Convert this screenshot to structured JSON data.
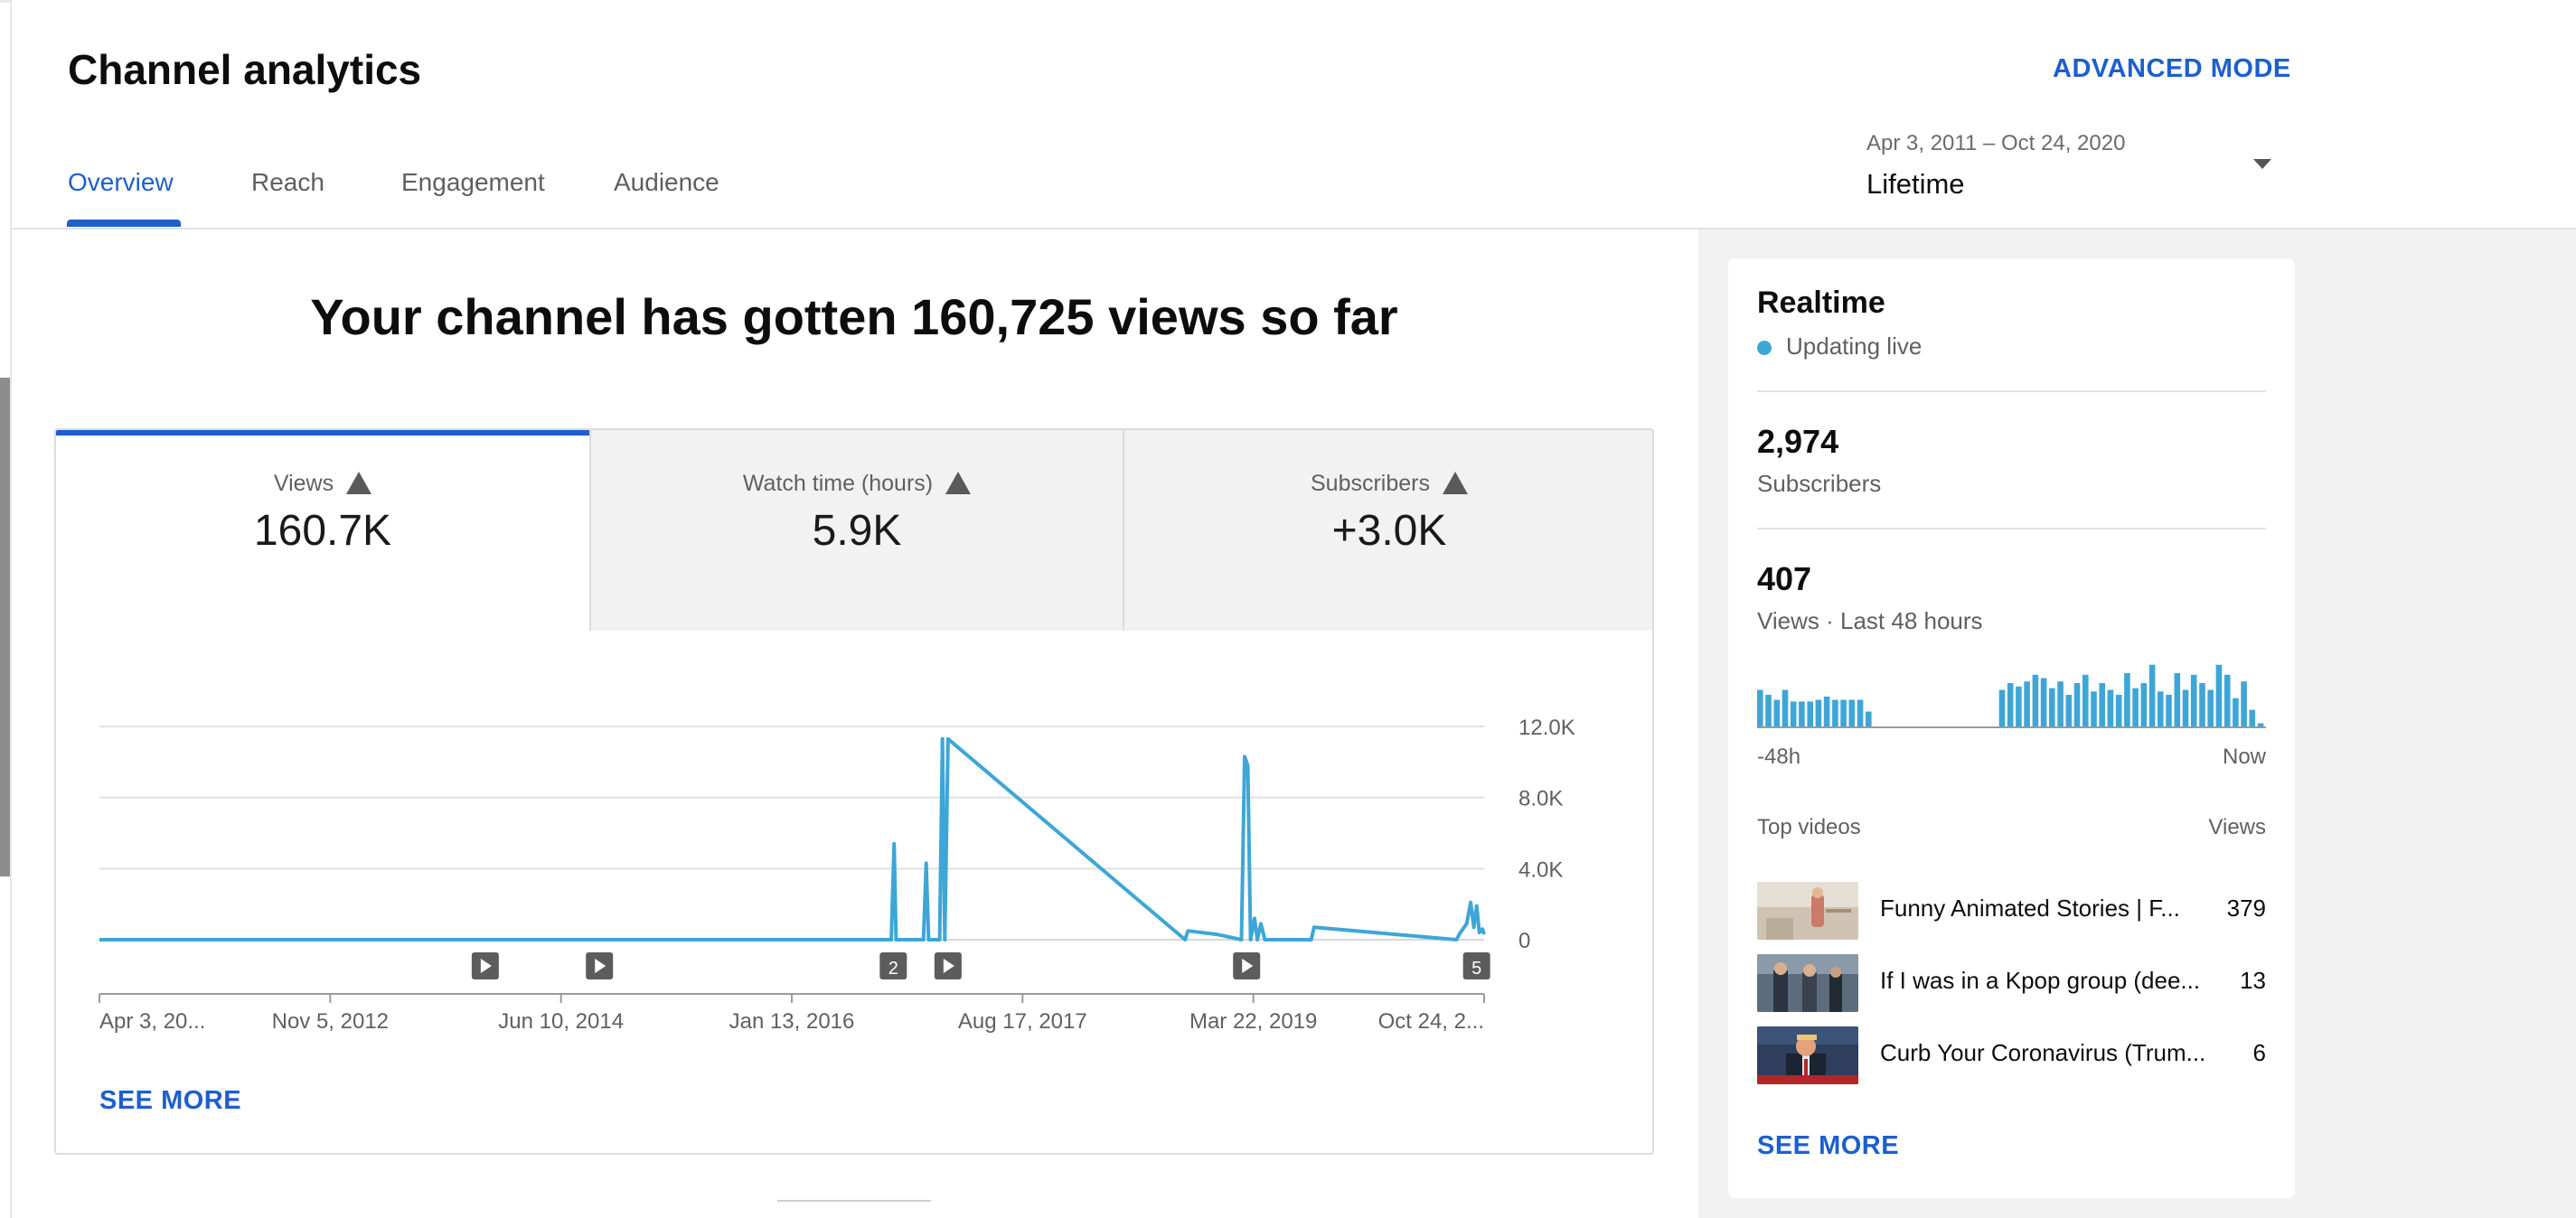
{
  "header": {
    "title": "Channel analytics",
    "advanced_mode": "ADVANCED MODE",
    "tabs": [
      {
        "label": "Overview",
        "active": true
      },
      {
        "label": "Reach",
        "active": false
      },
      {
        "label": "Engagement",
        "active": false
      },
      {
        "label": "Audience",
        "active": false
      }
    ],
    "date_range": {
      "dates": "Apr 3, 2011 – Oct 24, 2020",
      "label": "Lifetime"
    }
  },
  "main": {
    "headline": "Your channel has gotten 160,725 views so far",
    "metrics": [
      {
        "label": "Views",
        "value": "160.7K",
        "warning": true,
        "active": true
      },
      {
        "label": "Watch time (hours)",
        "value": "5.9K",
        "warning": true,
        "active": false
      },
      {
        "label": "Subscribers",
        "value": "+3.0K",
        "warning": true,
        "active": false
      }
    ],
    "see_more": "SEE MORE"
  },
  "chart_data": {
    "type": "line",
    "title": "",
    "xlabel": "",
    "ylabel": "",
    "ylim": [
      0,
      12000
    ],
    "yticks": [
      "12.0K",
      "8.0K",
      "4.0K",
      "0"
    ],
    "xticks": [
      "Apr 3, 20...",
      "Nov 5, 2012",
      "Jun 10, 2014",
      "Jan 13, 2016",
      "Aug 17, 2017",
      "Mar 22, 2019",
      "Oct 24, 2..."
    ],
    "grid": true,
    "series": [
      {
        "values_note_free": true,
        "x": [
          "2011-04-03",
          "2016-09-20",
          "2016-09-27",
          "2016-10-02",
          "2016-12-10",
          "2016-12-17",
          "2016-12-23",
          "2017-01-20",
          "2017-01-27",
          "2017-02-02",
          "2017-02-10",
          "2018-10-01",
          "2018-10-08",
          "2018-12-20",
          "2019-02-20",
          "2019-02-28",
          "2019-03-08",
          "2019-03-15",
          "2019-03-25",
          "2019-04-01",
          "2019-04-10",
          "2019-04-20",
          "2019-08-15",
          "2019-08-22",
          "2020-08-15",
          "2020-08-25",
          "2020-09-10",
          "2020-09-20",
          "2020-09-28",
          "2020-10-05",
          "2020-10-12",
          "2020-10-20",
          "2020-10-24"
        ],
        "y": [
          0,
          0,
          5400,
          0,
          0,
          4300,
          0,
          0,
          11300,
          0,
          11300,
          0,
          500,
          300,
          0,
          10300,
          9800,
          0,
          1200,
          0,
          900,
          0,
          0,
          700,
          0,
          400,
          900,
          2100,
          700,
          1900,
          400,
          600,
          300
        ]
      }
    ],
    "annotations": [
      {
        "x": "2013-12-01",
        "label": "",
        "icon": "play-icon"
      },
      {
        "x": "2014-09-15",
        "label": "",
        "icon": "play-icon"
      },
      {
        "x": "2016-09-25",
        "label": "2",
        "icon": ""
      },
      {
        "x": "2017-02-10",
        "label": "",
        "icon": "play-icon"
      },
      {
        "x": "2019-03-05",
        "label": "",
        "icon": "play-icon"
      },
      {
        "x": "2020-10-05",
        "label": "5",
        "icon": ""
      }
    ],
    "color": "#3ea6d7"
  },
  "realtime": {
    "title": "Realtime",
    "status": "Updating live",
    "subscribers_value": "2,974",
    "subscribers_label": "Subscribers",
    "views_value": "407",
    "views_label": "Views · Last 48 hours",
    "axis_start": "-48h",
    "axis_end": "Now",
    "bar_values": [
      23,
      20,
      17,
      23,
      16,
      16,
      16,
      17,
      19,
      17,
      17,
      17,
      17,
      10,
      0,
      0,
      0,
      0,
      0,
      0,
      0,
      0,
      0,
      0,
      0,
      0,
      0,
      0,
      0,
      23,
      27,
      25,
      28,
      32,
      30,
      24,
      28,
      20,
      27,
      32,
      22,
      27,
      23,
      20,
      33,
      24,
      27,
      38,
      22,
      20,
      33,
      23,
      32,
      27,
      23,
      38,
      32,
      18,
      28,
      11,
      3
    ],
    "top_videos_label": "Top videos",
    "views_col_label": "Views",
    "top_videos": [
      {
        "title": "Funny Animated Stories | F...",
        "views": "379"
      },
      {
        "title": "If I was in a Kpop group (dee...",
        "views": "13"
      },
      {
        "title": "Curb Your Coronavirus (Trum...",
        "views": "6"
      }
    ],
    "see_more": "SEE MORE"
  },
  "colors": {
    "accent": "#1d5fcc",
    "chart": "#3ea6d7"
  }
}
